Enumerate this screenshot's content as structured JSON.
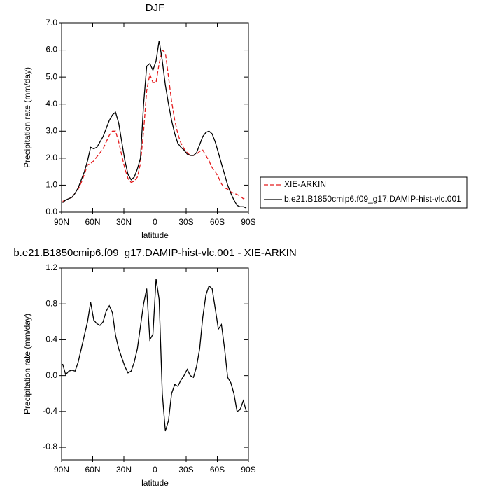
{
  "chart_data": [
    {
      "type": "line",
      "title": "DJF",
      "xlabel": "latitude",
      "ylabel": "Precipitation rate (mm/day)",
      "x": [
        89,
        86,
        83,
        80,
        77,
        74,
        71,
        68,
        65,
        62,
        59,
        56,
        53,
        50,
        47,
        44,
        41,
        38,
        35,
        32,
        29,
        26,
        23,
        20,
        17,
        14,
        11,
        8,
        5,
        2,
        -1,
        -4,
        -7,
        -10,
        -13,
        -16,
        -19,
        -22,
        -25,
        -28,
        -31,
        -34,
        -37,
        -40,
        -43,
        -46,
        -49,
        -52,
        -55,
        -58,
        -61,
        -64,
        -67,
        -70,
        -73,
        -76,
        -79,
        -82,
        -85,
        -88
      ],
      "series": [
        {
          "name": "XIE-ARKIN",
          "color": "#e41a1c",
          "line_style": "dashed",
          "values": [
            0.4,
            0.45,
            0.5,
            0.55,
            0.7,
            0.85,
            1.1,
            1.4,
            1.75,
            1.8,
            1.9,
            2.05,
            2.2,
            2.35,
            2.6,
            2.85,
            3.0,
            3.0,
            2.6,
            2.1,
            1.6,
            1.25,
            1.1,
            1.15,
            1.3,
            1.8,
            3.0,
            4.5,
            5.1,
            4.8,
            4.8,
            5.5,
            6.0,
            5.9,
            5.0,
            4.1,
            3.4,
            2.9,
            2.55,
            2.35,
            2.2,
            2.1,
            2.1,
            2.15,
            2.25,
            2.3,
            2.1,
            1.9,
            1.65,
            1.5,
            1.3,
            1.05,
            0.9,
            0.85,
            0.75,
            0.7,
            0.65,
            0.6,
            0.5,
            0.55
          ]
        },
        {
          "name": "b.e21.B1850cmip6.f09_g17.DAMIP-hist-vlc.001",
          "color": "#000000",
          "line_style": "solid",
          "values": [
            0.35,
            0.45,
            0.5,
            0.55,
            0.7,
            0.9,
            1.2,
            1.5,
            1.9,
            2.4,
            2.35,
            2.4,
            2.6,
            2.8,
            3.1,
            3.4,
            3.6,
            3.7,
            3.3,
            2.6,
            1.9,
            1.4,
            1.2,
            1.3,
            1.6,
            2.0,
            4.0,
            5.4,
            5.5,
            5.25,
            5.6,
            6.35,
            5.6,
            4.7,
            4.0,
            3.4,
            2.9,
            2.55,
            2.4,
            2.3,
            2.15,
            2.1,
            2.1,
            2.2,
            2.5,
            2.8,
            2.95,
            3.0,
            2.9,
            2.6,
            2.2,
            1.8,
            1.4,
            1.0,
            0.7,
            0.45,
            0.25,
            0.2,
            0.2,
            0.15
          ]
        }
      ],
      "xlim": [
        90,
        -90
      ],
      "xticks": [
        {
          "value": 90,
          "label": "90N"
        },
        {
          "value": 60,
          "label": "60N"
        },
        {
          "value": 30,
          "label": "30N"
        },
        0,
        {
          "value": -30,
          "label": "30S"
        },
        {
          "value": -60,
          "label": "60S"
        },
        {
          "value": -90,
          "label": "90S"
        }
      ],
      "ylim": [
        0,
        7
      ],
      "yticks": [
        {
          "value": 0,
          "label": "0.0"
        },
        {
          "value": 1,
          "label": "1.0"
        },
        {
          "value": 2,
          "label": "2.0"
        },
        {
          "value": 3,
          "label": "3.0"
        },
        {
          "value": 4,
          "label": "4.0"
        },
        {
          "value": 5,
          "label": "5.0"
        },
        {
          "value": 6,
          "label": "6.0"
        },
        {
          "value": 7,
          "label": "7.0"
        }
      ],
      "legend": "right"
    },
    {
      "type": "line",
      "title": "b.e21.B1850cmip6.f09_g17.DAMIP-hist-vlc.001 - XIE-ARKIN",
      "xlabel": "latitude",
      "ylabel": "Precipitation rate (mm/day)",
      "x": [
        89,
        86,
        83,
        80,
        77,
        74,
        71,
        68,
        65,
        62,
        59,
        56,
        53,
        50,
        47,
        44,
        41,
        38,
        35,
        32,
        29,
        26,
        23,
        20,
        17,
        14,
        11,
        8,
        5,
        2,
        -1,
        -4,
        -7,
        -10,
        -13,
        -16,
        -19,
        -22,
        -25,
        -28,
        -31,
        -34,
        -37,
        -40,
        -43,
        -46,
        -49,
        -52,
        -55,
        -58,
        -61,
        -64,
        -67,
        -70,
        -73,
        -76,
        -79,
        -82,
        -85,
        -88
      ],
      "series": [
        {
          "color": "#000000",
          "line_style": "solid",
          "values": [
            0.13,
            0.01,
            0.05,
            0.06,
            0.05,
            0.15,
            0.3,
            0.45,
            0.6,
            0.82,
            0.62,
            0.58,
            0.56,
            0.6,
            0.72,
            0.78,
            0.7,
            0.45,
            0.3,
            0.2,
            0.1,
            0.03,
            0.05,
            0.15,
            0.3,
            0.55,
            0.8,
            0.97,
            0.4,
            0.46,
            1.08,
            0.85,
            -0.2,
            -0.62,
            -0.5,
            -0.2,
            -0.1,
            -0.12,
            -0.05,
            0.0,
            0.07,
            0.0,
            -0.02,
            0.1,
            0.3,
            0.65,
            0.9,
            1.0,
            0.97,
            0.75,
            0.52,
            0.57,
            0.3,
            -0.02,
            -0.08,
            -0.2,
            -0.4,
            -0.38,
            -0.28,
            -0.4
          ]
        }
      ],
      "xlim": [
        90,
        -90
      ],
      "xticks": [
        {
          "value": 90,
          "label": "90N"
        },
        {
          "value": 60,
          "label": "60N"
        },
        {
          "value": 30,
          "label": "30N"
        },
        0,
        {
          "value": -30,
          "label": "30S"
        },
        {
          "value": -60,
          "label": "60S"
        },
        {
          "value": -90,
          "label": "90S"
        }
      ],
      "ylim": [
        -0.94,
        1.2
      ],
      "yticks": [
        -0.8,
        -0.4,
        {
          "value": 0,
          "label": "0.0"
        },
        0.4,
        0.8,
        1.2
      ]
    }
  ]
}
